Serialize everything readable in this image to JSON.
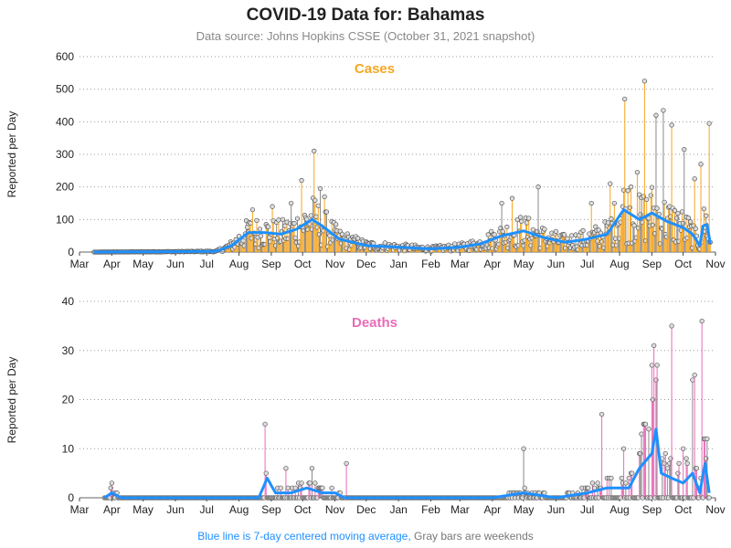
{
  "title": "COVID-19 Data for: Bahamas",
  "subtitle": "Data source: Johns Hopkins CSSE (October 31, 2021 snapshot)",
  "footer": {
    "blue": "Blue line is 7-day centered moving average,",
    "gray": "Gray bars are weekends"
  },
  "colors": {
    "cases": "#f5a623",
    "deaths": "#e86cb8",
    "average": "#1e90ff",
    "weekend": "#888888"
  },
  "chart_data": [
    {
      "type": "bar",
      "title": "Cases",
      "ylabel": "Reported per Day",
      "ylim": [
        0,
        600
      ],
      "yticks": [
        0,
        100,
        200,
        300,
        400,
        500,
        600
      ],
      "x_ticks": [
        "Mar",
        "Apr",
        "May",
        "Jun",
        "Jul",
        "Aug",
        "Sep",
        "Oct",
        "Nov",
        "Dec",
        "Jan",
        "Feb",
        "Mar",
        "Apr",
        "May",
        "Jun",
        "Jul",
        "Aug",
        "Sep",
        "Oct",
        "Nov"
      ],
      "x_range": [
        "2020-03-01",
        "2021-11-01"
      ],
      "grid": true,
      "moving_average": [
        [
          "2020-03-15",
          0
        ],
        [
          "2020-07-10",
          2
        ],
        [
          "2020-07-25",
          20
        ],
        [
          "2020-08-10",
          60
        ],
        [
          "2020-08-25",
          60
        ],
        [
          "2020-09-10",
          55
        ],
        [
          "2020-09-25",
          70
        ],
        [
          "2020-10-10",
          100
        ],
        [
          "2020-10-20",
          80
        ],
        [
          "2020-11-05",
          40
        ],
        [
          "2020-12-01",
          20
        ],
        [
          "2021-01-01",
          15
        ],
        [
          "2021-02-01",
          10
        ],
        [
          "2021-03-01",
          15
        ],
        [
          "2021-03-20",
          25
        ],
        [
          "2021-04-10",
          50
        ],
        [
          "2021-05-01",
          65
        ],
        [
          "2021-05-20",
          45
        ],
        [
          "2021-06-10",
          30
        ],
        [
          "2021-07-01",
          40
        ],
        [
          "2021-07-20",
          55
        ],
        [
          "2021-08-05",
          130
        ],
        [
          "2021-08-20",
          100
        ],
        [
          "2021-09-01",
          120
        ],
        [
          "2021-09-15",
          95
        ],
        [
          "2021-10-01",
          75
        ],
        [
          "2021-10-10",
          55
        ],
        [
          "2021-10-17",
          20
        ],
        [
          "2021-10-20",
          80
        ],
        [
          "2021-10-24",
          85
        ],
        [
          "2021-10-27",
          25
        ]
      ],
      "spikes": [
        [
          "2020-08-14",
          130
        ],
        [
          "2020-09-02",
          140
        ],
        [
          "2020-09-20",
          150
        ],
        [
          "2020-09-30",
          220
        ],
        [
          "2020-10-12",
          310
        ],
        [
          "2020-10-18",
          195
        ],
        [
          "2020-10-22",
          170
        ],
        [
          "2020-11-20",
          40
        ],
        [
          "2021-04-10",
          150
        ],
        [
          "2021-04-20",
          165
        ],
        [
          "2021-05-15",
          200
        ],
        [
          "2021-07-05",
          150
        ],
        [
          "2021-07-23",
          210
        ],
        [
          "2021-08-06",
          470
        ],
        [
          "2021-08-12",
          200
        ],
        [
          "2021-08-18",
          245
        ],
        [
          "2021-08-25",
          525
        ],
        [
          "2021-09-05",
          420
        ],
        [
          "2021-09-12",
          435
        ],
        [
          "2021-09-20",
          390
        ],
        [
          "2021-10-02",
          315
        ],
        [
          "2021-10-12",
          225
        ],
        [
          "2021-10-18",
          270
        ],
        [
          "2021-10-26",
          395
        ],
        [
          "2021-10-30",
          95
        ]
      ]
    },
    {
      "type": "bar",
      "title": "Deaths",
      "ylabel": "Reported per Day",
      "ylim": [
        0,
        40
      ],
      "yticks": [
        0,
        10,
        20,
        30,
        40
      ],
      "x_ticks": [
        "Mar",
        "Apr",
        "May",
        "Jun",
        "Jul",
        "Aug",
        "Sep",
        "Oct",
        "Nov",
        "Dec",
        "Jan",
        "Feb",
        "Mar",
        "Apr",
        "May",
        "Jun",
        "Jul",
        "Aug",
        "Sep",
        "Oct",
        "Nov"
      ],
      "x_range": [
        "2020-03-01",
        "2021-11-01"
      ],
      "grid": true,
      "moving_average": [
        [
          "2020-03-25",
          0
        ],
        [
          "2020-04-01",
          1
        ],
        [
          "2020-04-10",
          0
        ],
        [
          "2020-08-20",
          0
        ],
        [
          "2020-08-28",
          4
        ],
        [
          "2020-09-05",
          1
        ],
        [
          "2020-09-20",
          1
        ],
        [
          "2020-10-05",
          2
        ],
        [
          "2020-10-20",
          1
        ],
        [
          "2020-11-01",
          1
        ],
        [
          "2020-11-10",
          0
        ],
        [
          "2021-04-01",
          0
        ],
        [
          "2021-05-01",
          1
        ],
        [
          "2021-06-01",
          0
        ],
        [
          "2021-07-01",
          1
        ],
        [
          "2021-07-20",
          2
        ],
        [
          "2021-08-10",
          2
        ],
        [
          "2021-08-20",
          6
        ],
        [
          "2021-09-01",
          9
        ],
        [
          "2021-09-05",
          14
        ],
        [
          "2021-09-10",
          5
        ],
        [
          "2021-09-20",
          4
        ],
        [
          "2021-10-01",
          3
        ],
        [
          "2021-10-10",
          5
        ],
        [
          "2021-10-17",
          1
        ],
        [
          "2021-10-22",
          7
        ],
        [
          "2021-10-26",
          1
        ]
      ],
      "spikes": [
        [
          "2020-04-01",
          3
        ],
        [
          "2020-08-26",
          15
        ],
        [
          "2020-09-15",
          6
        ],
        [
          "2020-10-10",
          6
        ],
        [
          "2020-11-12",
          7
        ],
        [
          "2021-05-01",
          10
        ],
        [
          "2021-07-15",
          17
        ],
        [
          "2021-08-05",
          10
        ],
        [
          "2021-08-20",
          9
        ],
        [
          "2021-09-01",
          27
        ],
        [
          "2021-09-03",
          31
        ],
        [
          "2021-09-06",
          27
        ],
        [
          "2021-09-20",
          35
        ],
        [
          "2021-10-01",
          10
        ],
        [
          "2021-10-10",
          24
        ],
        [
          "2021-10-12",
          25
        ],
        [
          "2021-10-19",
          36
        ],
        [
          "2021-10-24",
          12
        ]
      ]
    }
  ]
}
